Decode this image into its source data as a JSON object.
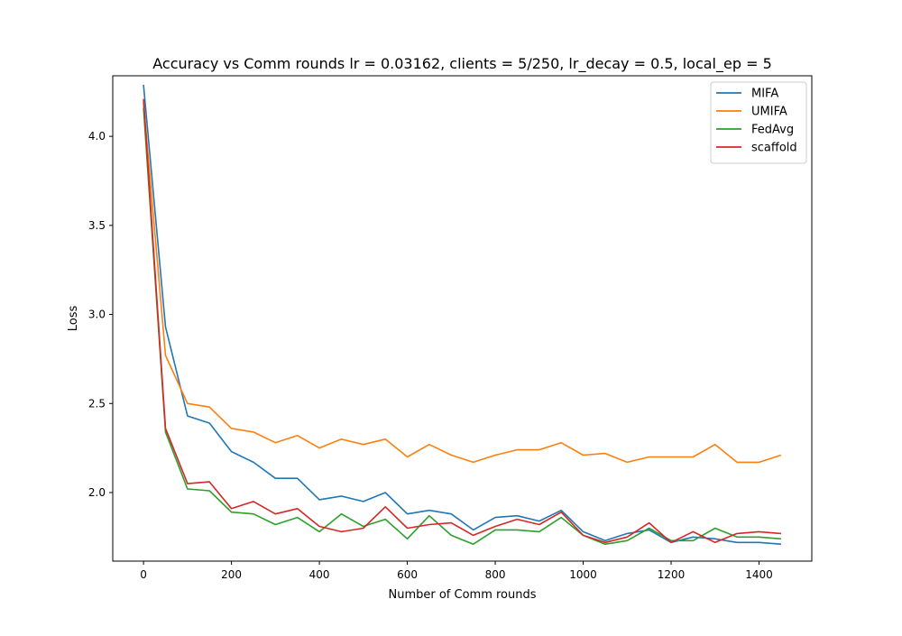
{
  "chart_data": {
    "type": "line",
    "title": "Accuracy vs Comm rounds lr = 0.03162, clients = 5/250, lr_decay = 0.5, local_ep = 5",
    "xlabel": "Number of Comm rounds",
    "ylabel": "Loss",
    "xlim": [
      -70,
      1520
    ],
    "ylim": [
      1.615,
      4.34
    ],
    "xticks": [
      0,
      200,
      400,
      600,
      800,
      1000,
      1200,
      1400
    ],
    "xtick_labels": [
      "0",
      "200",
      "400",
      "600",
      "800",
      "1000",
      "1200",
      "1400"
    ],
    "yticks": [
      2.0,
      2.5,
      3.0,
      3.5,
      4.0
    ],
    "ytick_labels": [
      "2.0",
      "2.5",
      "3.0",
      "3.5",
      "4.0"
    ],
    "grid": false,
    "legend_position": "top-right",
    "x": [
      0,
      50,
      100,
      150,
      200,
      250,
      300,
      350,
      400,
      450,
      500,
      550,
      600,
      650,
      700,
      750,
      800,
      850,
      900,
      950,
      1000,
      1050,
      1100,
      1150,
      1200,
      1250,
      1300,
      1350,
      1400,
      1450
    ],
    "series": [
      {
        "name": "MIFA",
        "color": "#1f77b4",
        "values": [
          4.29,
          2.93,
          2.43,
          2.39,
          2.23,
          2.17,
          2.08,
          2.08,
          1.96,
          1.98,
          1.95,
          2.0,
          1.88,
          1.9,
          1.88,
          1.79,
          1.86,
          1.87,
          1.84,
          1.9,
          1.78,
          1.73,
          1.77,
          1.79,
          1.72,
          1.75,
          1.74,
          1.72,
          1.72,
          1.71
        ]
      },
      {
        "name": "UMIFA",
        "color": "#ff7f0e",
        "values": [
          4.19,
          2.77,
          2.5,
          2.48,
          2.36,
          2.34,
          2.28,
          2.32,
          2.25,
          2.3,
          2.27,
          2.3,
          2.2,
          2.27,
          2.21,
          2.17,
          2.21,
          2.24,
          2.24,
          2.28,
          2.21,
          2.22,
          2.17,
          2.2,
          2.2,
          2.2,
          2.27,
          2.17,
          2.17,
          2.21
        ]
      },
      {
        "name": "FedAvg",
        "color": "#2ca02c",
        "values": [
          4.16,
          2.34,
          2.02,
          2.01,
          1.89,
          1.88,
          1.82,
          1.86,
          1.78,
          1.88,
          1.81,
          1.85,
          1.74,
          1.87,
          1.76,
          1.71,
          1.79,
          1.79,
          1.78,
          1.86,
          1.76,
          1.71,
          1.73,
          1.8,
          1.73,
          1.73,
          1.8,
          1.75,
          1.75,
          1.74
        ]
      },
      {
        "name": "scaffold",
        "color": "#d62728",
        "values": [
          4.21,
          2.36,
          2.05,
          2.06,
          1.91,
          1.95,
          1.88,
          1.91,
          1.81,
          1.78,
          1.8,
          1.92,
          1.8,
          1.82,
          1.83,
          1.76,
          1.81,
          1.85,
          1.82,
          1.89,
          1.76,
          1.72,
          1.75,
          1.83,
          1.72,
          1.78,
          1.72,
          1.77,
          1.78,
          1.77
        ]
      }
    ]
  }
}
